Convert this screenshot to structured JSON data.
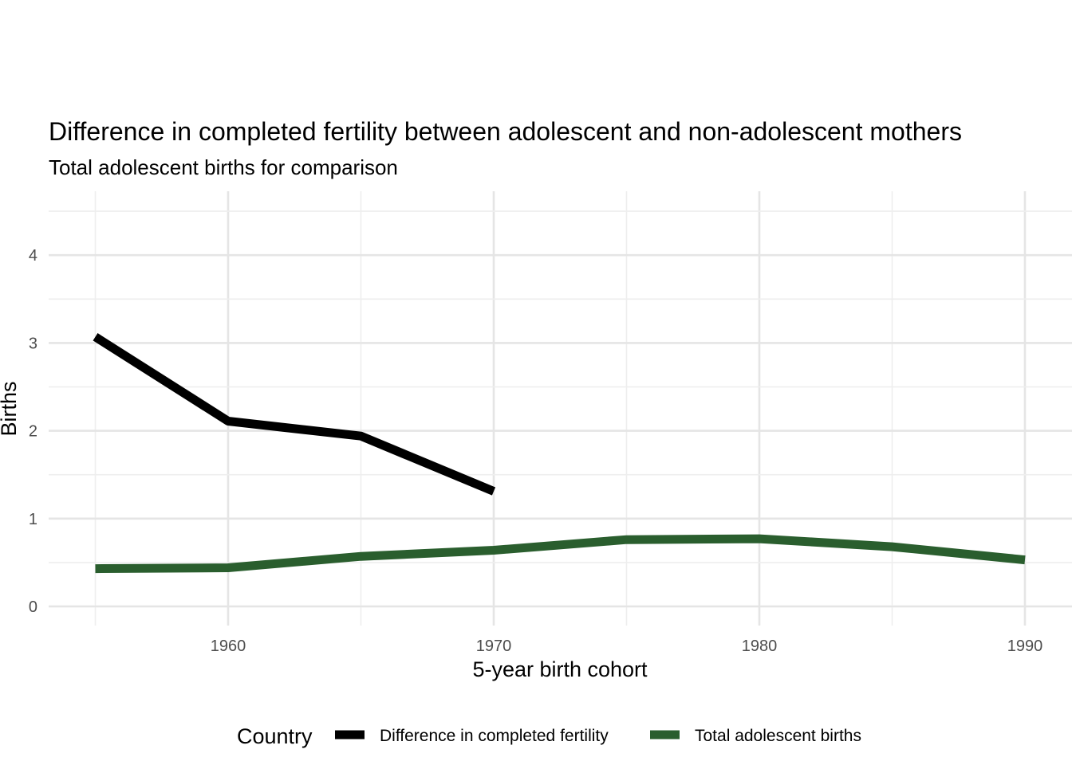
{
  "chart_data": {
    "type": "line",
    "title": "Difference in completed fertility between adolescent and non-adolescent mothers",
    "subtitle": "Total adolescent births for comparison",
    "xlabel": "5-year birth cohort",
    "ylabel": "Births",
    "xlim": [
      1955,
      1990
    ],
    "ylim": [
      0,
      4.5
    ],
    "x_ticks": [
      1960,
      1970,
      1980,
      1990
    ],
    "y_ticks": [
      0,
      1,
      2,
      3,
      4
    ],
    "grid": true,
    "legend": {
      "title": "Country",
      "position": "bottom"
    },
    "series": [
      {
        "name": "Difference in completed fertility",
        "color": "#000000",
        "x": [
          1955,
          1960,
          1965,
          1970
        ],
        "y": [
          3.07,
          2.11,
          1.94,
          1.31
        ]
      },
      {
        "name": "Total adolescent births",
        "color": "#2a5e2e",
        "x": [
          1955,
          1960,
          1965,
          1970,
          1975,
          1980,
          1985,
          1990
        ],
        "y": [
          0.43,
          0.44,
          0.57,
          0.64,
          0.76,
          0.77,
          0.68,
          0.53
        ]
      }
    ]
  }
}
